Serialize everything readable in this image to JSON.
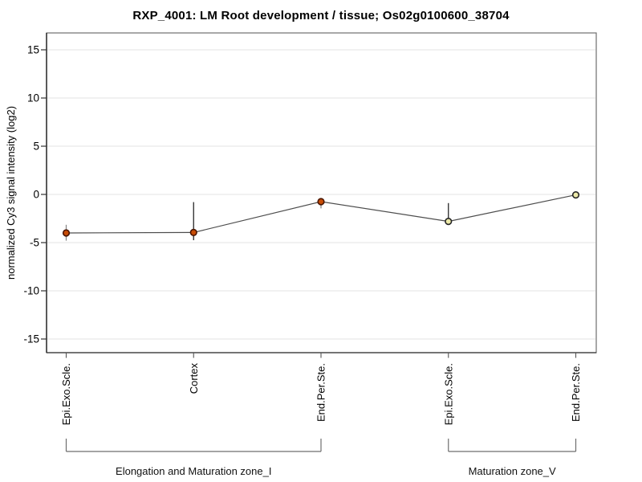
{
  "title": "RXP_4001: LM Root development / tissue; Os02g0100600_38704",
  "chart_data": {
    "type": "line",
    "title": "RXP_4001: LM Root development / tissue; Os02g0100600_38704",
    "xlabel": "",
    "ylabel": "normalized Cy3 signal intensity (log2)",
    "ylim": [
      -16.4,
      16.8
    ],
    "yticks": [
      15,
      10,
      5,
      0,
      -5,
      -10,
      -15
    ],
    "grid": true,
    "legend_position": "none",
    "categories": [
      "Epi.Exo.Scle.",
      "Cortex",
      "End.Per.Ste.",
      "Epi.Exo.Scle.",
      "End.Per.Ste."
    ],
    "series": [
      {
        "name": "normalized Cy3 signal intensity",
        "values": [
          -4.0,
          -3.95,
          -0.75,
          -2.8,
          -0.05
        ]
      }
    ],
    "points": [
      {
        "label": "Epi.Exo.Scle.",
        "group": "Elongation and Maturation zone_I",
        "value": -4.0,
        "err_high": -3.15,
        "err_low": -4.8,
        "fill": "#c84c05",
        "stroke": "#4a1500",
        "err_color": "#8a8a8a"
      },
      {
        "label": "Cortex",
        "group": "Elongation and Maturation zone_I",
        "value": -3.95,
        "err_high": -0.8,
        "err_low": -4.75,
        "fill": "#c84c05",
        "stroke": "#4a1500",
        "err_color": "#262626"
      },
      {
        "label": "End.Per.Ste.",
        "group": "Elongation and Maturation zone_I",
        "value": -0.75,
        "err_high": -0.45,
        "err_low": -1.45,
        "fill": "#c84c05",
        "stroke": "#4a1500",
        "err_color": "#8a8a8a"
      },
      {
        "label": "Epi.Exo.Scle.",
        "group": "Maturation zone_V",
        "value": -2.8,
        "err_high": -0.9,
        "err_low": -2.85,
        "fill": "#ece9a8",
        "stroke": "#262626",
        "err_color": "#262626"
      },
      {
        "label": "End.Per.Ste.",
        "group": "Maturation zone_V",
        "value": -0.05,
        "err_high": null,
        "err_low": null,
        "fill": "#ece9a8",
        "stroke": "#262626",
        "err_color": null
      }
    ],
    "groups": [
      {
        "label": "Elongation and Maturation zone_I",
        "from": 0,
        "to": 2
      },
      {
        "label": "Maturation zone_V",
        "from": 3,
        "to": 4
      }
    ],
    "colors": {
      "line": "#4d4d4d",
      "grid": "#e3e3e3",
      "box": "#6e6e6e",
      "axis": "#111111",
      "tick": "#333333",
      "bracket": "#6e6e6e",
      "text": "#000000"
    }
  }
}
